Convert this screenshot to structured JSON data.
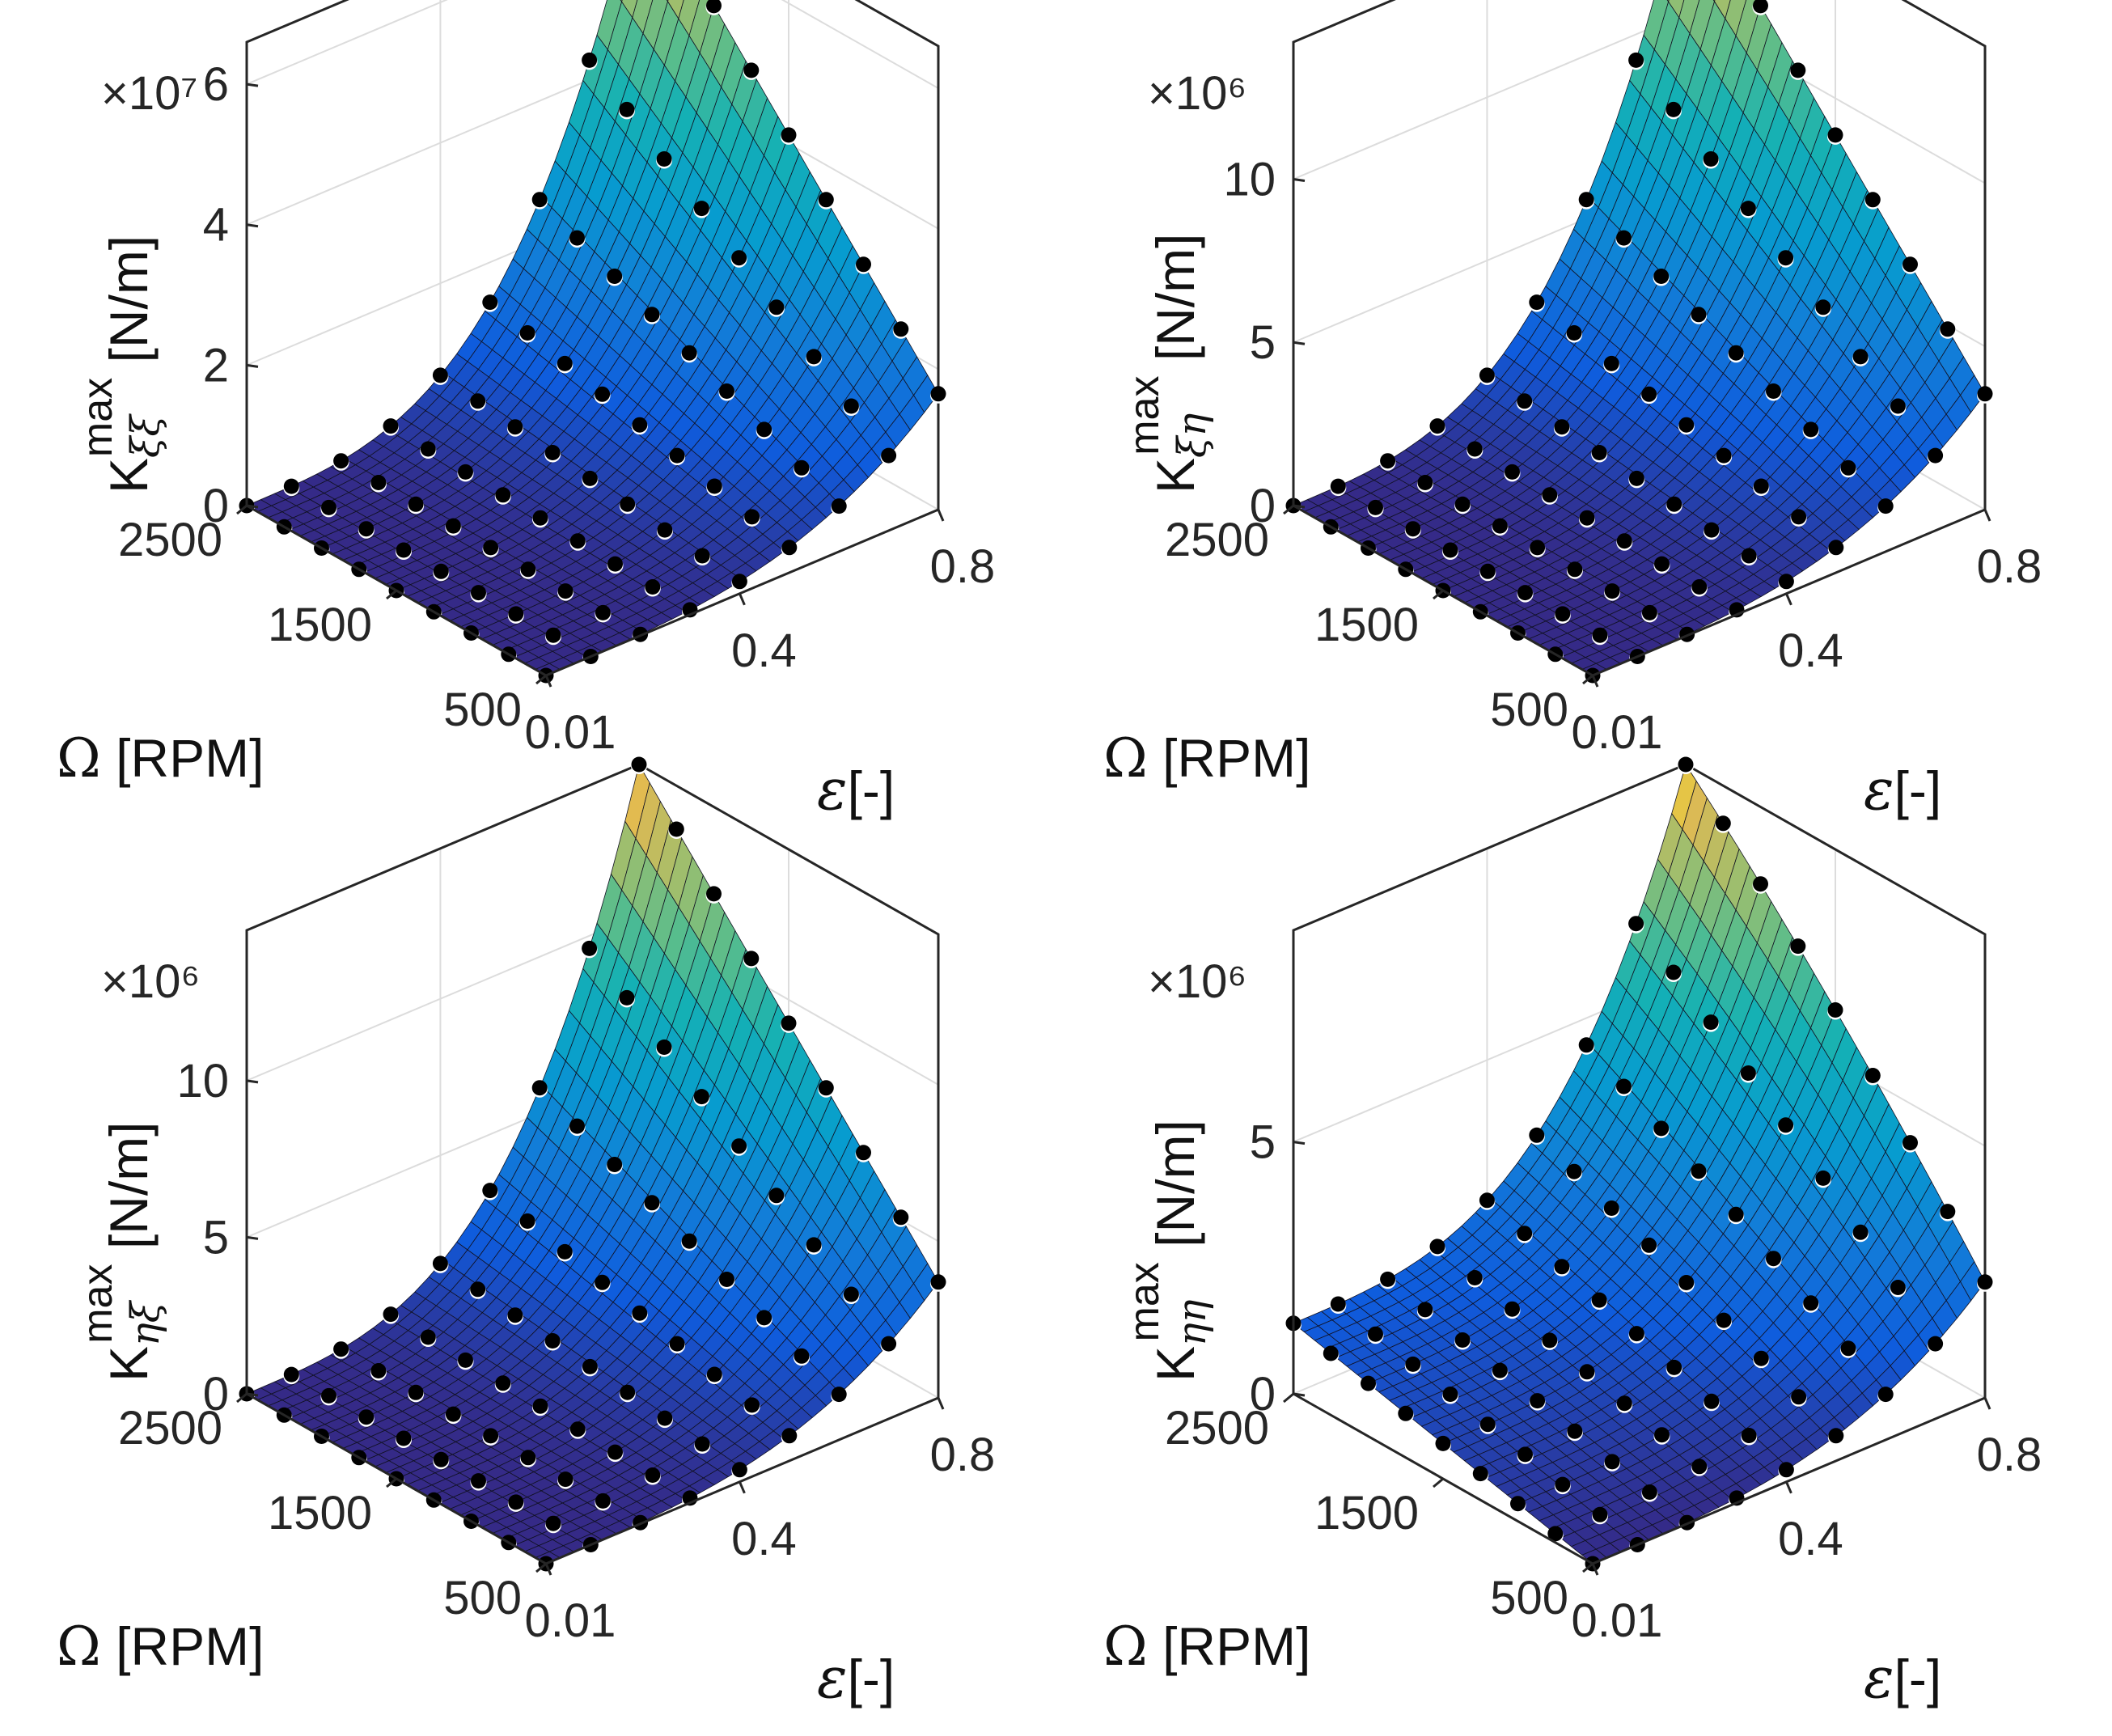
{
  "figure": {
    "rows": 2,
    "cols": 2
  },
  "chart_data": [
    {
      "type": "surface3d",
      "panel": "top-left",
      "zlabel_main": "K",
      "zlabel_sup": "max",
      "zlabel_sub": "ξξ",
      "zlabel_unit": " [N/m]",
      "exponent_label": "×10⁷",
      "xlabel_sym": "ε",
      "xlabel_rest": "[-]",
      "ylabel_sym": "Ω",
      "ylabel_rest": " [RPM]",
      "xlim": [
        0.01,
        0.8
      ],
      "ylim": [
        500,
        2500
      ],
      "zlim": [
        0,
        6.6
      ],
      "zticks": [
        0,
        2,
        4,
        6
      ],
      "zticklabels": [
        "0",
        "2",
        "4",
        "6"
      ],
      "xticks": [
        0.01,
        0.4,
        0.8
      ],
      "xticklabels": [
        "0.01",
        "0.4",
        "0.8"
      ],
      "yticks": [
        500,
        1500,
        2500
      ],
      "yticklabels": [
        "500",
        "1500",
        "2500"
      ],
      "eps_samples": [
        0.01,
        0.1,
        0.2,
        0.3,
        0.4,
        0.5,
        0.6,
        0.7,
        0.8
      ],
      "omega_samples": [
        500,
        750,
        1000,
        1250,
        1500,
        1750,
        2000,
        2250,
        2500
      ],
      "z_max": 6.6,
      "z_floor": 0.0,
      "colormap": "parula",
      "marker_color": "#000000",
      "marker_outline": "#ffffff"
    },
    {
      "type": "surface3d",
      "panel": "top-right",
      "zlabel_main": "K",
      "zlabel_sup": "max",
      "zlabel_sub": "ξη",
      "zlabel_unit": " [N/m]",
      "exponent_label": "×10⁶",
      "xlabel_sym": "ε",
      "xlabel_rest": "[-]",
      "ylabel_sym": "Ω",
      "ylabel_rest": " [RPM]",
      "xlim": [
        0.01,
        0.8
      ],
      "ylim": [
        500,
        2500
      ],
      "zlim": [
        0,
        14.2
      ],
      "zticks": [
        0,
        5,
        10
      ],
      "zticklabels": [
        "0",
        "5",
        "10"
      ],
      "xticks": [
        0.01,
        0.4,
        0.8
      ],
      "xticklabels": [
        "0.01",
        "0.4",
        "0.8"
      ],
      "yticks": [
        500,
        1500,
        2500
      ],
      "yticklabels": [
        "500",
        "1500",
        "2500"
      ],
      "eps_samples": [
        0.01,
        0.1,
        0.2,
        0.3,
        0.4,
        0.5,
        0.6,
        0.7,
        0.8
      ],
      "omega_samples": [
        500,
        750,
        1000,
        1250,
        1500,
        1750,
        2000,
        2250,
        2500
      ],
      "z_max": 14.2,
      "z_floor": 0.0,
      "colormap": "parula",
      "marker_color": "#000000",
      "marker_outline": "#ffffff"
    },
    {
      "type": "surface3d",
      "panel": "bottom-left",
      "zlabel_main": "K",
      "zlabel_sup": "max",
      "zlabel_sub": "ηξ",
      "zlabel_unit": " [N/m]",
      "exponent_label": "×10⁶",
      "xlabel_sym": "ε",
      "xlabel_rest": "[-]",
      "ylabel_sym": "Ω",
      "ylabel_rest": " [RPM]",
      "xlim": [
        0.01,
        0.8
      ],
      "ylim": [
        500,
        2500
      ],
      "zlim": [
        0,
        14.8
      ],
      "zticks": [
        0,
        5,
        10
      ],
      "zticklabels": [
        "0",
        "5",
        "10"
      ],
      "xticks": [
        0.01,
        0.4,
        0.8
      ],
      "xticklabels": [
        "0.01",
        "0.4",
        "0.8"
      ],
      "yticks": [
        500,
        1500,
        2500
      ],
      "yticklabels": [
        "500",
        "1500",
        "2500"
      ],
      "eps_samples": [
        0.01,
        0.1,
        0.2,
        0.3,
        0.4,
        0.5,
        0.6,
        0.7,
        0.8
      ],
      "omega_samples": [
        500,
        750,
        1000,
        1250,
        1500,
        1750,
        2000,
        2250,
        2500
      ],
      "z_max": 14.8,
      "z_floor": 0.0,
      "colormap": "parula",
      "marker_color": "#000000",
      "marker_outline": "#ffffff"
    },
    {
      "type": "surface3d",
      "panel": "bottom-right",
      "zlabel_main": "K",
      "zlabel_sup": "max",
      "zlabel_sub": "ηη",
      "zlabel_unit": " [N/m]",
      "exponent_label": "×10⁶",
      "xlabel_sym": "ε",
      "xlabel_rest": "[-]",
      "ylabel_sym": "Ω",
      "ylabel_rest": " [RPM]",
      "xlim": [
        0.01,
        0.8
      ],
      "ylim": [
        500,
        2500
      ],
      "zlim": [
        0,
        9.2
      ],
      "zticks": [
        0,
        5
      ],
      "zticklabels": [
        "0",
        "5"
      ],
      "xticks": [
        0.01,
        0.4,
        0.8
      ],
      "xticklabels": [
        "0.01",
        "0.4",
        "0.8"
      ],
      "yticks": [
        500,
        1500,
        2500
      ],
      "yticklabels": [
        "500",
        "1500",
        "2500"
      ],
      "eps_samples": [
        0.01,
        0.1,
        0.2,
        0.3,
        0.4,
        0.5,
        0.6,
        0.7,
        0.8
      ],
      "omega_samples": [
        500,
        750,
        1000,
        1250,
        1500,
        1750,
        2000,
        2250,
        2500
      ],
      "z_max": 9.2,
      "z_floor": 1.4,
      "colormap": "parula",
      "marker_color": "#000000",
      "marker_outline": "#ffffff"
    }
  ]
}
